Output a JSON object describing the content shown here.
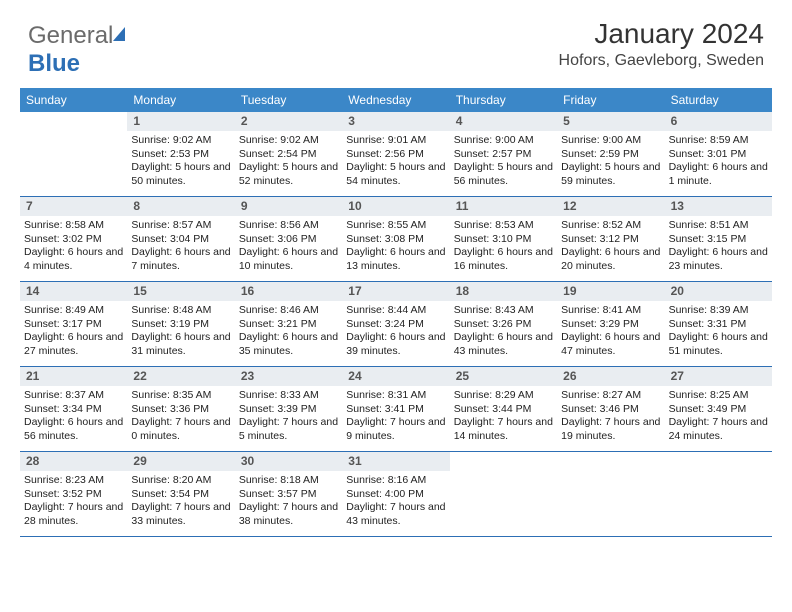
{
  "logo": {
    "text1": "General",
    "text2": "Blue"
  },
  "title": "January 2024",
  "location": "Hofors, Gaevleborg, Sweden",
  "colors": {
    "header_bg": "#3b87c8",
    "week_border": "#2d6fb5",
    "daynum_bg": "#e9edf1",
    "page_bg": "#ffffff",
    "text": "#222222"
  },
  "typography": {
    "title_fontsize": 28,
    "location_fontsize": 16,
    "weekday_fontsize": 12,
    "daynum_fontsize": 12,
    "body_fontsize": 10.5
  },
  "weekdays": [
    "Sunday",
    "Monday",
    "Tuesday",
    "Wednesday",
    "Thursday",
    "Friday",
    "Saturday"
  ],
  "weeks": [
    [
      {
        "blank": true
      },
      {
        "n": "1",
        "sunrise": "Sunrise: 9:02 AM",
        "sunset": "Sunset: 2:53 PM",
        "daylight": "Daylight: 5 hours and 50 minutes."
      },
      {
        "n": "2",
        "sunrise": "Sunrise: 9:02 AM",
        "sunset": "Sunset: 2:54 PM",
        "daylight": "Daylight: 5 hours and 52 minutes."
      },
      {
        "n": "3",
        "sunrise": "Sunrise: 9:01 AM",
        "sunset": "Sunset: 2:56 PM",
        "daylight": "Daylight: 5 hours and 54 minutes."
      },
      {
        "n": "4",
        "sunrise": "Sunrise: 9:00 AM",
        "sunset": "Sunset: 2:57 PM",
        "daylight": "Daylight: 5 hours and 56 minutes."
      },
      {
        "n": "5",
        "sunrise": "Sunrise: 9:00 AM",
        "sunset": "Sunset: 2:59 PM",
        "daylight": "Daylight: 5 hours and 59 minutes."
      },
      {
        "n": "6",
        "sunrise": "Sunrise: 8:59 AM",
        "sunset": "Sunset: 3:01 PM",
        "daylight": "Daylight: 6 hours and 1 minute."
      }
    ],
    [
      {
        "n": "7",
        "sunrise": "Sunrise: 8:58 AM",
        "sunset": "Sunset: 3:02 PM",
        "daylight": "Daylight: 6 hours and 4 minutes."
      },
      {
        "n": "8",
        "sunrise": "Sunrise: 8:57 AM",
        "sunset": "Sunset: 3:04 PM",
        "daylight": "Daylight: 6 hours and 7 minutes."
      },
      {
        "n": "9",
        "sunrise": "Sunrise: 8:56 AM",
        "sunset": "Sunset: 3:06 PM",
        "daylight": "Daylight: 6 hours and 10 minutes."
      },
      {
        "n": "10",
        "sunrise": "Sunrise: 8:55 AM",
        "sunset": "Sunset: 3:08 PM",
        "daylight": "Daylight: 6 hours and 13 minutes."
      },
      {
        "n": "11",
        "sunrise": "Sunrise: 8:53 AM",
        "sunset": "Sunset: 3:10 PM",
        "daylight": "Daylight: 6 hours and 16 minutes."
      },
      {
        "n": "12",
        "sunrise": "Sunrise: 8:52 AM",
        "sunset": "Sunset: 3:12 PM",
        "daylight": "Daylight: 6 hours and 20 minutes."
      },
      {
        "n": "13",
        "sunrise": "Sunrise: 8:51 AM",
        "sunset": "Sunset: 3:15 PM",
        "daylight": "Daylight: 6 hours and 23 minutes."
      }
    ],
    [
      {
        "n": "14",
        "sunrise": "Sunrise: 8:49 AM",
        "sunset": "Sunset: 3:17 PM",
        "daylight": "Daylight: 6 hours and 27 minutes."
      },
      {
        "n": "15",
        "sunrise": "Sunrise: 8:48 AM",
        "sunset": "Sunset: 3:19 PM",
        "daylight": "Daylight: 6 hours and 31 minutes."
      },
      {
        "n": "16",
        "sunrise": "Sunrise: 8:46 AM",
        "sunset": "Sunset: 3:21 PM",
        "daylight": "Daylight: 6 hours and 35 minutes."
      },
      {
        "n": "17",
        "sunrise": "Sunrise: 8:44 AM",
        "sunset": "Sunset: 3:24 PM",
        "daylight": "Daylight: 6 hours and 39 minutes."
      },
      {
        "n": "18",
        "sunrise": "Sunrise: 8:43 AM",
        "sunset": "Sunset: 3:26 PM",
        "daylight": "Daylight: 6 hours and 43 minutes."
      },
      {
        "n": "19",
        "sunrise": "Sunrise: 8:41 AM",
        "sunset": "Sunset: 3:29 PM",
        "daylight": "Daylight: 6 hours and 47 minutes."
      },
      {
        "n": "20",
        "sunrise": "Sunrise: 8:39 AM",
        "sunset": "Sunset: 3:31 PM",
        "daylight": "Daylight: 6 hours and 51 minutes."
      }
    ],
    [
      {
        "n": "21",
        "sunrise": "Sunrise: 8:37 AM",
        "sunset": "Sunset: 3:34 PM",
        "daylight": "Daylight: 6 hours and 56 minutes."
      },
      {
        "n": "22",
        "sunrise": "Sunrise: 8:35 AM",
        "sunset": "Sunset: 3:36 PM",
        "daylight": "Daylight: 7 hours and 0 minutes."
      },
      {
        "n": "23",
        "sunrise": "Sunrise: 8:33 AM",
        "sunset": "Sunset: 3:39 PM",
        "daylight": "Daylight: 7 hours and 5 minutes."
      },
      {
        "n": "24",
        "sunrise": "Sunrise: 8:31 AM",
        "sunset": "Sunset: 3:41 PM",
        "daylight": "Daylight: 7 hours and 9 minutes."
      },
      {
        "n": "25",
        "sunrise": "Sunrise: 8:29 AM",
        "sunset": "Sunset: 3:44 PM",
        "daylight": "Daylight: 7 hours and 14 minutes."
      },
      {
        "n": "26",
        "sunrise": "Sunrise: 8:27 AM",
        "sunset": "Sunset: 3:46 PM",
        "daylight": "Daylight: 7 hours and 19 minutes."
      },
      {
        "n": "27",
        "sunrise": "Sunrise: 8:25 AM",
        "sunset": "Sunset: 3:49 PM",
        "daylight": "Daylight: 7 hours and 24 minutes."
      }
    ],
    [
      {
        "n": "28",
        "sunrise": "Sunrise: 8:23 AM",
        "sunset": "Sunset: 3:52 PM",
        "daylight": "Daylight: 7 hours and 28 minutes."
      },
      {
        "n": "29",
        "sunrise": "Sunrise: 8:20 AM",
        "sunset": "Sunset: 3:54 PM",
        "daylight": "Daylight: 7 hours and 33 minutes."
      },
      {
        "n": "30",
        "sunrise": "Sunrise: 8:18 AM",
        "sunset": "Sunset: 3:57 PM",
        "daylight": "Daylight: 7 hours and 38 minutes."
      },
      {
        "n": "31",
        "sunrise": "Sunrise: 8:16 AM",
        "sunset": "Sunset: 4:00 PM",
        "daylight": "Daylight: 7 hours and 43 minutes."
      },
      {
        "outside": true
      },
      {
        "outside": true
      },
      {
        "outside": true
      }
    ]
  ]
}
